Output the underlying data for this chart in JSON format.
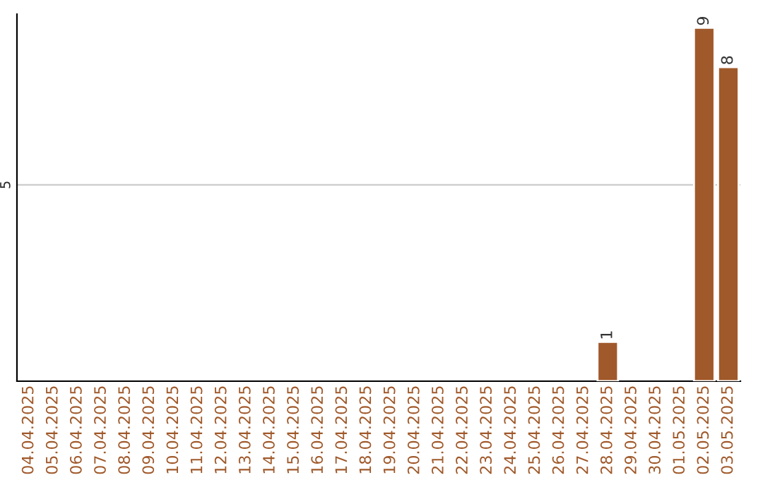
{
  "chart_data": {
    "type": "bar",
    "ylim": [
      0,
      9.35
    ],
    "yticks": [
      5
    ],
    "grid": "y",
    "categories": [
      "04.04.2025",
      "05.04.2025",
      "06.04.2025",
      "07.04.2025",
      "08.04.2025",
      "09.04.2025",
      "10.04.2025",
      "11.04.2025",
      "12.04.2025",
      "13.04.2025",
      "14.04.2025",
      "15.04.2025",
      "16.04.2025",
      "17.04.2025",
      "18.04.2025",
      "19.04.2025",
      "20.04.2025",
      "21.04.2025",
      "22.04.2025",
      "23.04.2025",
      "24.04.2025",
      "25.04.2025",
      "26.04.2025",
      "27.04.2025",
      "28.04.2025",
      "29.04.2025",
      "30.04.2025",
      "01.05.2025",
      "02.05.2025",
      "03.05.2025"
    ],
    "values": [
      null,
      null,
      null,
      null,
      null,
      null,
      null,
      null,
      null,
      null,
      null,
      null,
      null,
      null,
      null,
      null,
      null,
      null,
      null,
      null,
      null,
      null,
      null,
      null,
      1,
      null,
      null,
      null,
      9,
      8
    ],
    "data_labels": true,
    "color": "#a0592a"
  }
}
